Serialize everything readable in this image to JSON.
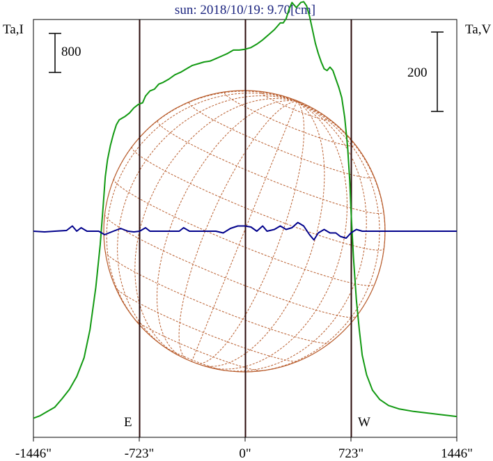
{
  "chart_data": {
    "type": "line",
    "title": "sun: 2018/10/19: 9.70[cm]",
    "y_left_label": "Ta,I",
    "y_right_label": "Ta,V",
    "scale_bar_left": "800",
    "scale_bar_right": "200",
    "x_ticks": [
      {
        "value": -1446,
        "label": "-1446\""
      },
      {
        "value": -723,
        "label": "-723\""
      },
      {
        "value": 0,
        "label": "0\""
      },
      {
        "value": 723,
        "label": "723\""
      },
      {
        "value": 1446,
        "label": "1446\""
      }
    ],
    "xlim": [
      -1446,
      1446
    ],
    "solar_limb_arcsec": 723,
    "limb_markers": [
      {
        "value": -723,
        "label": "E"
      },
      {
        "value": 0,
        "label": ""
      },
      {
        "value": 723,
        "label": "W"
      }
    ],
    "colors": {
      "stokes_i": "#119911",
      "stokes_v": "#00008b",
      "disk": "#b85c2c",
      "grid_lines": "#b85c2c",
      "markers": "#2a0a0a",
      "title": "#1a237e"
    },
    "series": [
      {
        "name": "I",
        "color": "#119911",
        "axis": "left",
        "ylim": [
          0,
          4800
        ],
        "points": [
          [
            -1446,
            110
          ],
          [
            -1400,
            140
          ],
          [
            -1350,
            190
          ],
          [
            -1300,
            240
          ],
          [
            -1250,
            340
          ],
          [
            -1200,
            450
          ],
          [
            -1150,
            600
          ],
          [
            -1100,
            820
          ],
          [
            -1060,
            1150
          ],
          [
            -1020,
            1650
          ],
          [
            -990,
            2150
          ],
          [
            -970,
            2600
          ],
          [
            -955,
            2950
          ],
          [
            -940,
            3150
          ],
          [
            -920,
            3320
          ],
          [
            -900,
            3450
          ],
          [
            -880,
            3560
          ],
          [
            -860,
            3620
          ],
          [
            -840,
            3640
          ],
          [
            -820,
            3660
          ],
          [
            -790,
            3700
          ],
          [
            -760,
            3760
          ],
          [
            -730,
            3800
          ],
          [
            -700,
            3820
          ],
          [
            -680,
            3900
          ],
          [
            -650,
            3960
          ],
          [
            -620,
            3980
          ],
          [
            -590,
            4040
          ],
          [
            -560,
            4060
          ],
          [
            -520,
            4100
          ],
          [
            -480,
            4150
          ],
          [
            -440,
            4180
          ],
          [
            -400,
            4220
          ],
          [
            -360,
            4260
          ],
          [
            -320,
            4280
          ],
          [
            -280,
            4300
          ],
          [
            -240,
            4310
          ],
          [
            -200,
            4340
          ],
          [
            -160,
            4370
          ],
          [
            -120,
            4400
          ],
          [
            -80,
            4440
          ],
          [
            -40,
            4440
          ],
          [
            0,
            4450
          ],
          [
            40,
            4470
          ],
          [
            80,
            4510
          ],
          [
            120,
            4560
          ],
          [
            160,
            4620
          ],
          [
            200,
            4680
          ],
          [
            240,
            4760
          ],
          [
            260,
            4760
          ],
          [
            280,
            4810
          ],
          [
            300,
            4920
          ],
          [
            320,
            5000
          ],
          [
            350,
            4940
          ],
          [
            380,
            5000
          ],
          [
            400,
            5010
          ],
          [
            420,
            4960
          ],
          [
            440,
            4840
          ],
          [
            460,
            4680
          ],
          [
            480,
            4520
          ],
          [
            500,
            4400
          ],
          [
            520,
            4300
          ],
          [
            540,
            4220
          ],
          [
            560,
            4200
          ],
          [
            580,
            4240
          ],
          [
            600,
            4200
          ],
          [
            620,
            4100
          ],
          [
            640,
            4000
          ],
          [
            660,
            3880
          ],
          [
            680,
            3650
          ],
          [
            700,
            3300
          ],
          [
            715,
            2900
          ],
          [
            725,
            2500
          ],
          [
            740,
            2000
          ],
          [
            760,
            1500
          ],
          [
            780,
            1150
          ],
          [
            800,
            850
          ],
          [
            830,
            620
          ],
          [
            870,
            440
          ],
          [
            920,
            330
          ],
          [
            980,
            260
          ],
          [
            1050,
            220
          ],
          [
            1150,
            190
          ],
          [
            1250,
            170
          ],
          [
            1350,
            150
          ],
          [
            1446,
            130
          ]
        ]
      },
      {
        "name": "V",
        "color": "#00008b",
        "axis": "right",
        "ylim": [
          -600,
          600
        ],
        "points": [
          [
            -1446,
            0
          ],
          [
            -1370,
            -2
          ],
          [
            -1300,
            0
          ],
          [
            -1220,
            2
          ],
          [
            -1180,
            15
          ],
          [
            -1150,
            0
          ],
          [
            -1120,
            10
          ],
          [
            -1080,
            0
          ],
          [
            -1000,
            0
          ],
          [
            -960,
            -10
          ],
          [
            -900,
            0
          ],
          [
            -850,
            8
          ],
          [
            -800,
            0
          ],
          [
            -760,
            -2
          ],
          [
            -720,
            0
          ],
          [
            -680,
            10
          ],
          [
            -650,
            0
          ],
          [
            -600,
            0
          ],
          [
            -550,
            0
          ],
          [
            -500,
            0
          ],
          [
            -450,
            0
          ],
          [
            -420,
            10
          ],
          [
            -380,
            0
          ],
          [
            -300,
            0
          ],
          [
            -250,
            0
          ],
          [
            -200,
            0
          ],
          [
            -150,
            -5
          ],
          [
            -100,
            8
          ],
          [
            -50,
            15
          ],
          [
            0,
            15
          ],
          [
            40,
            12
          ],
          [
            80,
            0
          ],
          [
            120,
            15
          ],
          [
            150,
            0
          ],
          [
            200,
            5
          ],
          [
            240,
            15
          ],
          [
            280,
            5
          ],
          [
            320,
            10
          ],
          [
            360,
            25
          ],
          [
            400,
            15
          ],
          [
            440,
            -10
          ],
          [
            470,
            -25
          ],
          [
            500,
            -5
          ],
          [
            540,
            5
          ],
          [
            580,
            -5
          ],
          [
            620,
            -5
          ],
          [
            650,
            -15
          ],
          [
            690,
            -20
          ],
          [
            723,
            -5
          ],
          [
            760,
            5
          ],
          [
            800,
            0
          ],
          [
            850,
            0
          ],
          [
            950,
            0
          ],
          [
            1050,
            0
          ],
          [
            1150,
            0
          ],
          [
            1250,
            0
          ],
          [
            1350,
            0
          ],
          [
            1446,
            0
          ]
        ]
      }
    ]
  }
}
